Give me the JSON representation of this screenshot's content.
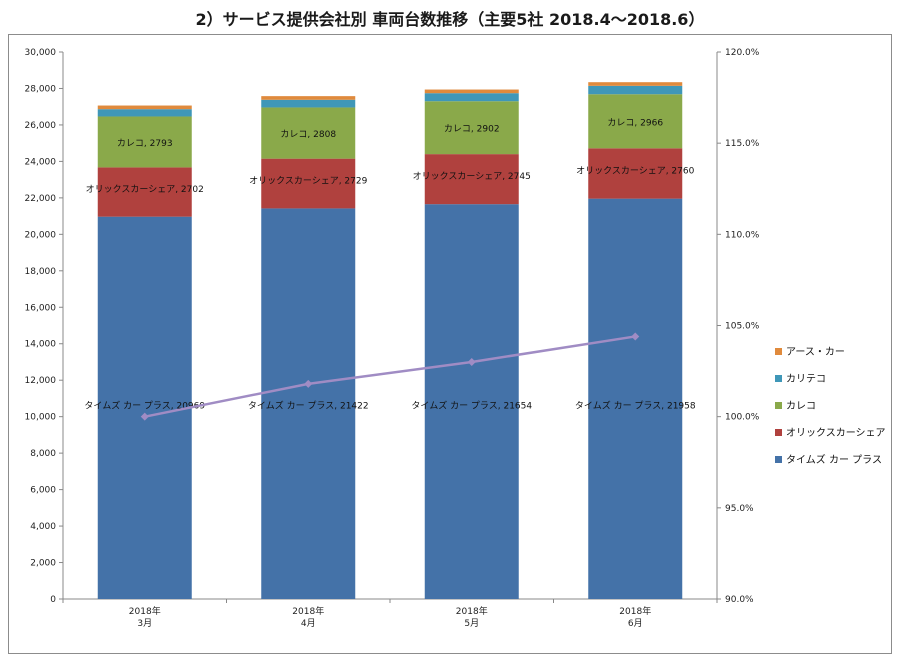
{
  "chart_data": {
    "type": "bar",
    "stacked": true,
    "title": "2）サービス提供会社別 車両台数推移（主要5社 2018.4～2018.6）",
    "categories": [
      [
        "2018年",
        "3月"
      ],
      [
        "2018年",
        "4月"
      ],
      [
        "2018年",
        "5月"
      ],
      [
        "2018年",
        "6月"
      ]
    ],
    "ylim": [
      0,
      30000
    ],
    "y_ticks": [
      "0",
      "2,000",
      "4,000",
      "6,000",
      "8,000",
      "10,000",
      "12,000",
      "14,000",
      "16,000",
      "18,000",
      "20,000",
      "22,000",
      "24,000",
      "26,000",
      "28,000",
      "30,000"
    ],
    "y2lim": [
      90,
      120
    ],
    "y2_ticks": [
      "90.0%",
      "95.0%",
      "100.0%",
      "105.0%",
      "110.0%",
      "115.0%",
      "120.0%"
    ],
    "grid": false,
    "legend_position": "right",
    "series": [
      {
        "name": "タイムズ カー プラス",
        "color": "#4472a8",
        "values": [
          20969,
          21422,
          21654,
          21958
        ],
        "show_labels": true
      },
      {
        "name": "オリックスカーシェア",
        "color": "#b0413e",
        "values": [
          2702,
          2729,
          2745,
          2760
        ],
        "show_labels": true
      },
      {
        "name": "カレコ",
        "color": "#8aa94a",
        "values": [
          2793,
          2808,
          2902,
          2966
        ],
        "show_labels": true
      },
      {
        "name": "カリテコ",
        "color": "#3f97b8",
        "values": [
          400,
          420,
          440,
          460
        ],
        "show_labels": false
      },
      {
        "name": "アース・カー",
        "color": "#e08a3c",
        "values": [
          200,
          200,
          200,
          200
        ],
        "show_labels": false
      }
    ],
    "line_series": {
      "color": "#a08cc4",
      "axis": "secondary",
      "values": [
        100.0,
        101.8,
        103.0,
        104.4
      ]
    },
    "legend_order": [
      "アース・カー",
      "カリテコ",
      "カレコ",
      "オリックスカーシェア",
      "タイムズ カー プラス"
    ]
  }
}
